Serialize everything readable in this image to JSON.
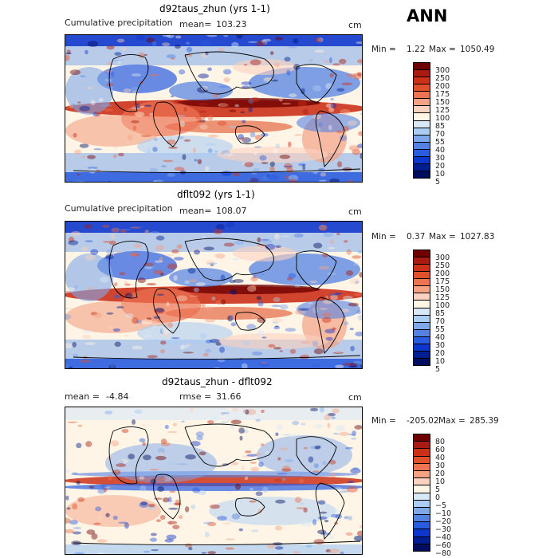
{
  "season": "ANN",
  "panels": [
    {
      "title": "d92taus_zhun (yrs 1-1)",
      "left_label": "Cumulative precipitation",
      "stat_label": "mean=",
      "stat_value": "103.23",
      "extra_label": "",
      "extra_value": "",
      "units": "cm",
      "min_label": "Min =",
      "min_value": "1.22",
      "max_label": "Max =",
      "max_value": "1050.49",
      "levels": [
        "300",
        "250",
        "200",
        "175",
        "150",
        "125",
        "100",
        "85",
        "70",
        "55",
        "40",
        "30",
        "20",
        "10",
        "5"
      ],
      "colors": [
        "#6f0000",
        "#a81a12",
        "#cc3118",
        "#e0502a",
        "#ec7452",
        "#f4a184",
        "#fbd2bf",
        "#fef5e6",
        "#d8e8f8",
        "#abcdf1",
        "#7ea8ea",
        "#5382e2",
        "#2a5ce0",
        "#0d36cc",
        "#001e92",
        "#000d5e"
      ]
    },
    {
      "title": "dflt092 (yrs 1-1)",
      "left_label": "Cumulative precipitation",
      "stat_label": "mean=",
      "stat_value": "108.07",
      "extra_label": "",
      "extra_value": "",
      "units": "cm",
      "min_label": "Min =",
      "min_value": "0.37",
      "max_label": "Max =",
      "max_value": "1027.83",
      "levels": [
        "300",
        "250",
        "200",
        "175",
        "150",
        "125",
        "100",
        "85",
        "70",
        "55",
        "40",
        "30",
        "20",
        "10",
        "5"
      ],
      "colors": [
        "#6f0000",
        "#a81a12",
        "#cc3118",
        "#e0502a",
        "#ec7452",
        "#f4a184",
        "#fbd2bf",
        "#fef5e6",
        "#d8e8f8",
        "#abcdf1",
        "#7ea8ea",
        "#5382e2",
        "#2a5ce0",
        "#0d36cc",
        "#001e92",
        "#000d5e"
      ]
    },
    {
      "title": "d92taus_zhun - dflt092",
      "left_label": "mean =",
      "stat_label": "",
      "stat_value": "-4.84",
      "extra_label": "rmse =",
      "extra_value": "31.66",
      "units": "cm",
      "min_label": "Min =",
      "min_value": "-205.02",
      "max_label": "Max =",
      "max_value": "285.39",
      "levels": [
        "80",
        "60",
        "40",
        "30",
        "20",
        "10",
        "5",
        "0",
        "−5",
        "−10",
        "−20",
        "−30",
        "−40",
        "−60",
        "−80"
      ],
      "colors": [
        "#6f0000",
        "#a81a12",
        "#cc3118",
        "#e0502a",
        "#ec7452",
        "#f4a184",
        "#fbd2bf",
        "#fef5e6",
        "#d8e8f8",
        "#abcdf1",
        "#7ea8ea",
        "#5382e2",
        "#2a5ce0",
        "#0d36cc",
        "#001e92",
        "#000d5e"
      ]
    }
  ]
}
